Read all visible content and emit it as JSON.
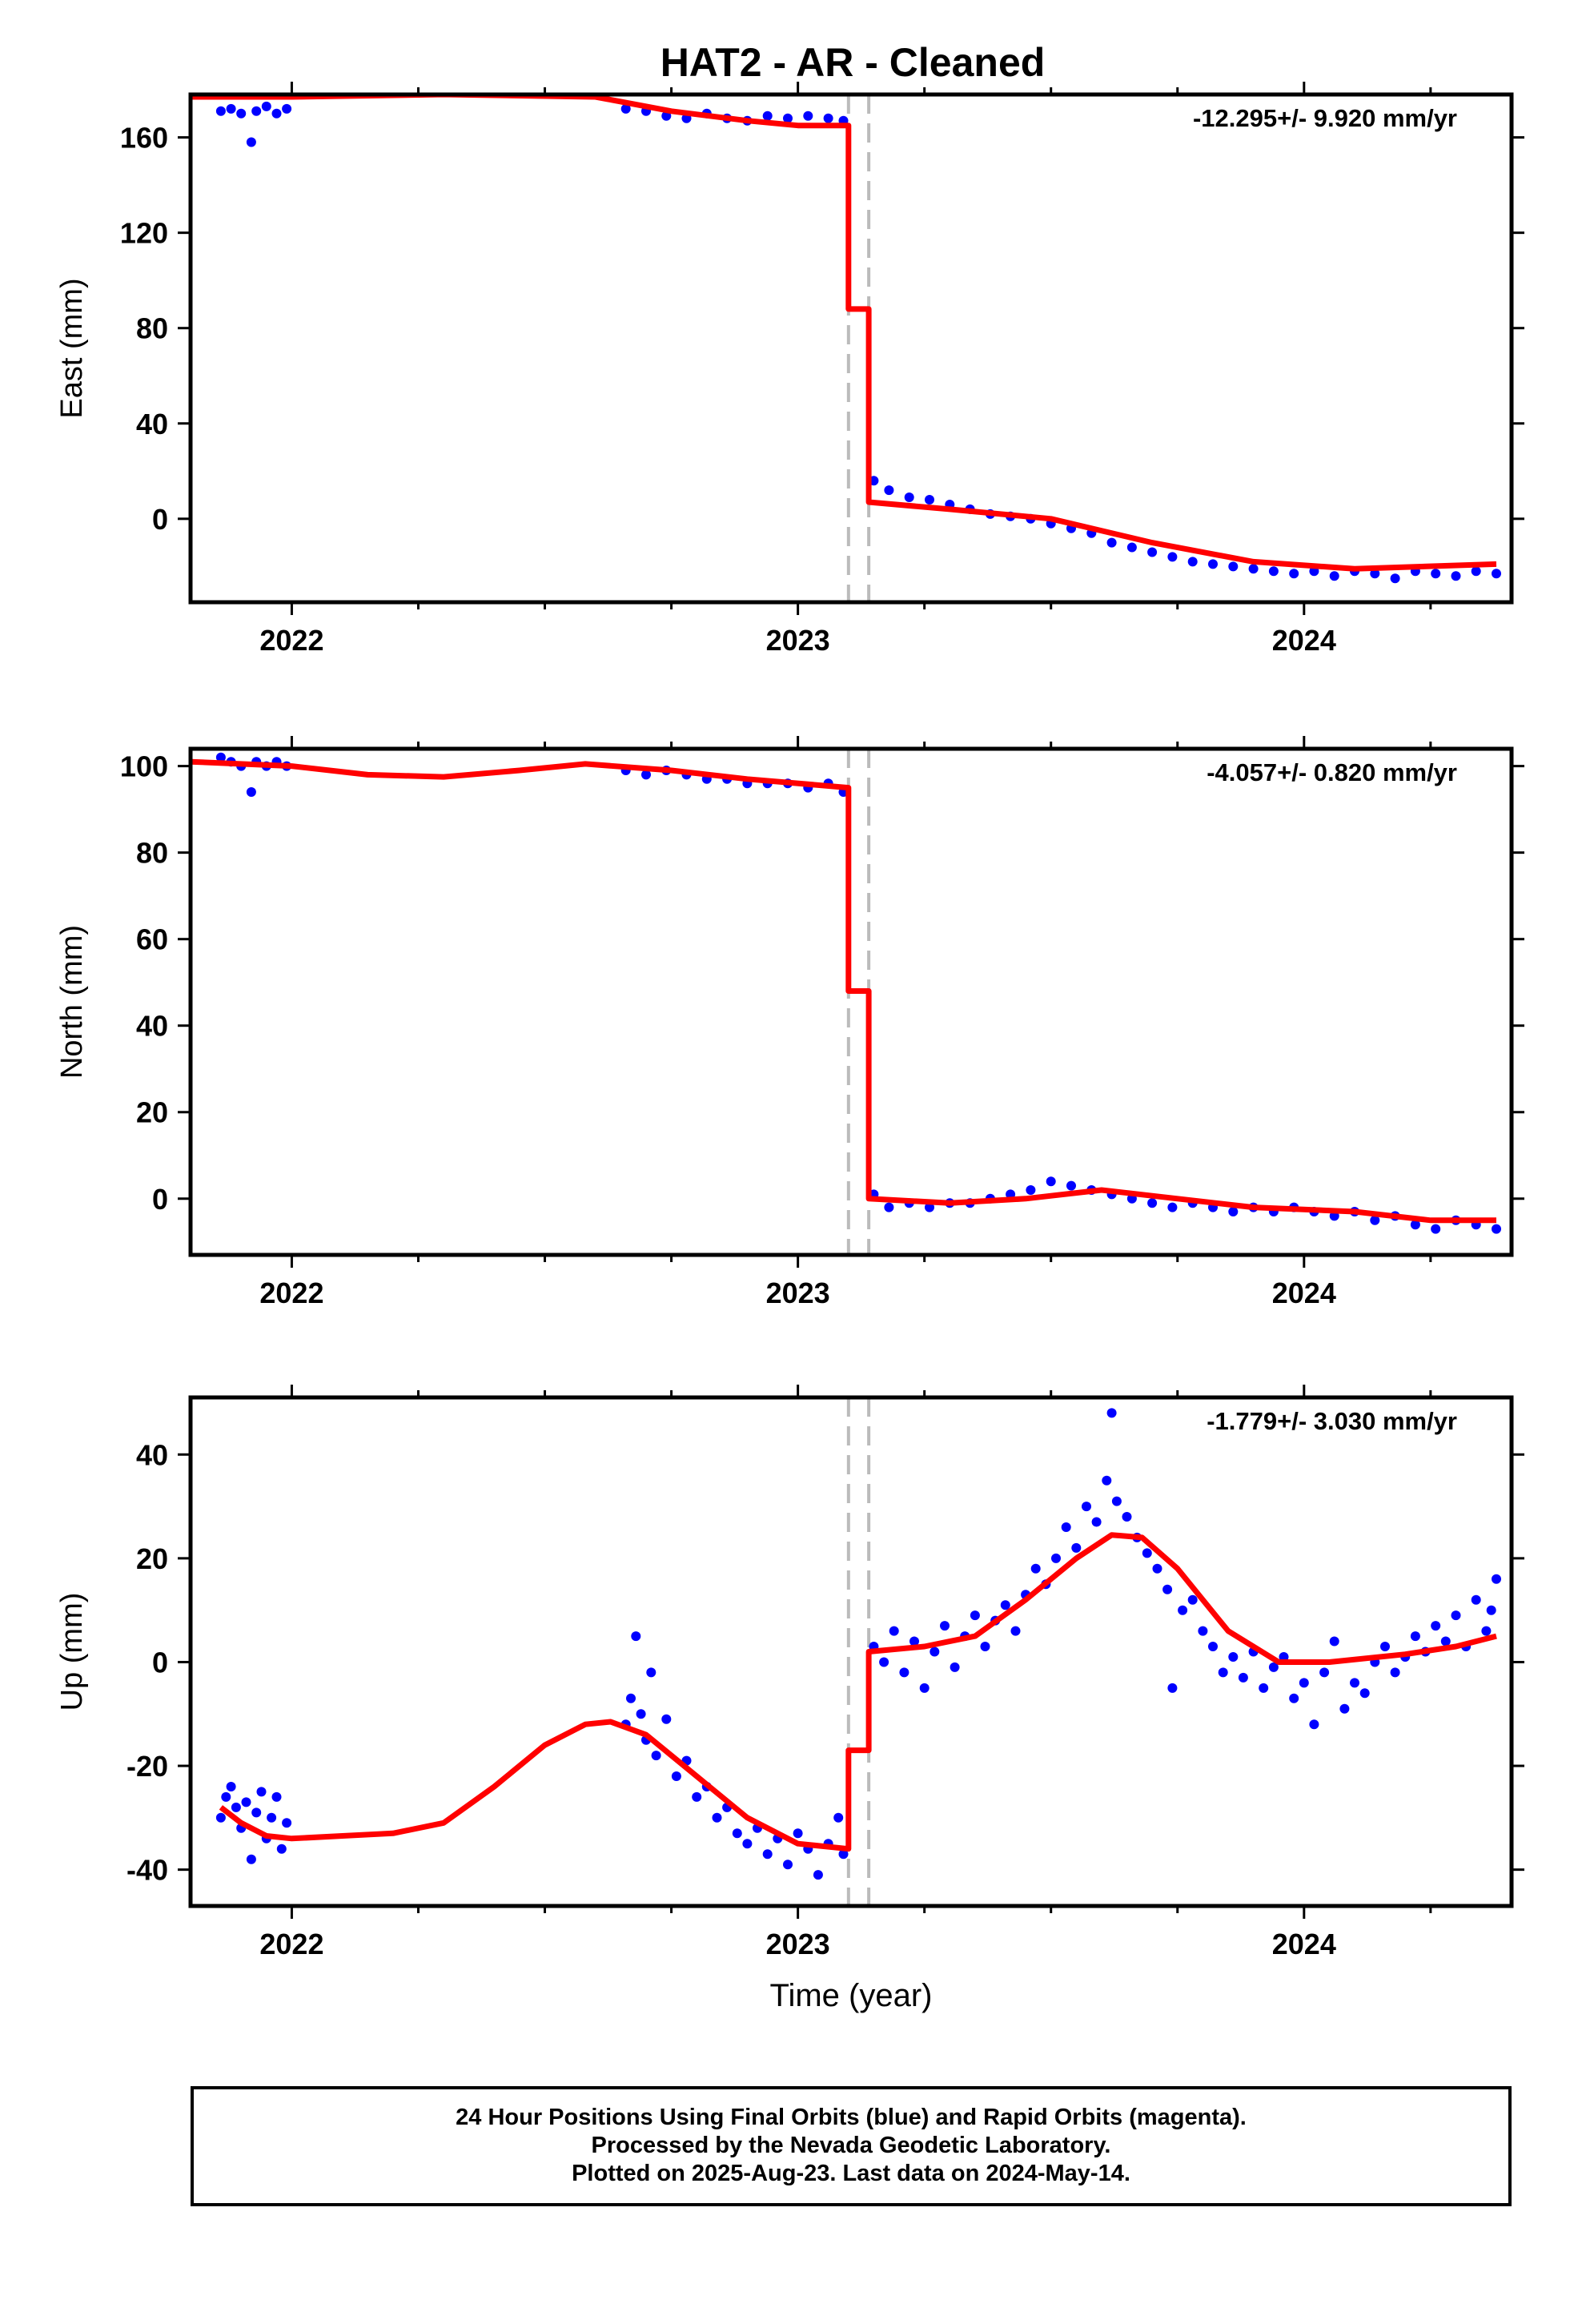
{
  "title": "HAT2  - AR - Cleaned",
  "footer": {
    "line1": "24 Hour Positions Using Final Orbits (blue) and Rapid Orbits (magenta).",
    "line2": "Processed by the Nevada Geodetic Laboratory.",
    "line3": "Plotted on 2025-Aug-23. Last data on 2024-May-14."
  },
  "chart_data": [
    {
      "type": "scatter",
      "ylabel": "East (mm)",
      "xlabel": "",
      "rate": "-12.295+/- 9.920 mm/yr",
      "xlim": [
        2021.8,
        2024.41
      ],
      "ylim": [
        -35,
        178
      ],
      "xticks": [
        "2022",
        "2023",
        "2024"
      ],
      "yticks": [
        0,
        40,
        80,
        120,
        160
      ],
      "colors": {
        "points": "#0000ff",
        "model": "#ff0000",
        "events": "#bbbbbb"
      },
      "events": [
        2023.1,
        2023.14
      ],
      "points": [
        [
          2021.86,
          171
        ],
        [
          2021.88,
          172
        ],
        [
          2021.9,
          170
        ],
        [
          2021.92,
          158
        ],
        [
          2021.93,
          171
        ],
        [
          2021.95,
          173
        ],
        [
          2021.97,
          170
        ],
        [
          2021.99,
          172
        ],
        [
          2022.66,
          172
        ],
        [
          2022.7,
          171
        ],
        [
          2022.74,
          169
        ],
        [
          2022.78,
          168
        ],
        [
          2022.82,
          170
        ],
        [
          2022.86,
          168
        ],
        [
          2022.9,
          167
        ],
        [
          2022.94,
          169
        ],
        [
          2022.98,
          168
        ],
        [
          2023.02,
          169
        ],
        [
          2023.06,
          168
        ],
        [
          2023.09,
          167
        ],
        [
          2023.15,
          16
        ],
        [
          2023.18,
          12
        ],
        [
          2023.22,
          9
        ],
        [
          2023.26,
          8
        ],
        [
          2023.3,
          6
        ],
        [
          2023.34,
          4
        ],
        [
          2023.38,
          2
        ],
        [
          2023.42,
          1
        ],
        [
          2023.46,
          0
        ],
        [
          2023.5,
          -2
        ],
        [
          2023.54,
          -4
        ],
        [
          2023.58,
          -6
        ],
        [
          2023.62,
          -10
        ],
        [
          2023.66,
          -12
        ],
        [
          2023.7,
          -14
        ],
        [
          2023.74,
          -16
        ],
        [
          2023.78,
          -18
        ],
        [
          2023.82,
          -19
        ],
        [
          2023.86,
          -20
        ],
        [
          2023.9,
          -21
        ],
        [
          2023.94,
          -22
        ],
        [
          2023.98,
          -23
        ],
        [
          2024.02,
          -22
        ],
        [
          2024.06,
          -24
        ],
        [
          2024.1,
          -22
        ],
        [
          2024.14,
          -23
        ],
        [
          2024.18,
          -25
        ],
        [
          2024.22,
          -22
        ],
        [
          2024.26,
          -23
        ],
        [
          2024.3,
          -24
        ],
        [
          2024.34,
          -22
        ],
        [
          2024.38,
          -23
        ]
      ],
      "model": [
        [
          2021.8,
          177
        ],
        [
          2022.0,
          177
        ],
        [
          2022.3,
          178
        ],
        [
          2022.6,
          177
        ],
        [
          2022.75,
          171
        ],
        [
          2022.9,
          167
        ],
        [
          2023.0,
          165
        ],
        [
          2023.1,
          165
        ],
        [
          2023.1,
          88
        ],
        [
          2023.14,
          88
        ],
        [
          2023.14,
          7
        ],
        [
          2023.3,
          4
        ],
        [
          2023.5,
          0
        ],
        [
          2023.7,
          -10
        ],
        [
          2023.9,
          -18
        ],
        [
          2024.1,
          -21
        ],
        [
          2024.38,
          -19
        ]
      ]
    },
    {
      "type": "scatter",
      "ylabel": "North (mm)",
      "xlabel": "",
      "rate": "-4.057+/- 0.820 mm/yr",
      "xlim": [
        2021.8,
        2024.41
      ],
      "ylim": [
        -13,
        104
      ],
      "xticks": [
        "2022",
        "2023",
        "2024"
      ],
      "yticks": [
        0,
        20,
        40,
        60,
        80,
        100
      ],
      "colors": {
        "points": "#0000ff",
        "model": "#ff0000",
        "events": "#bbbbbb"
      },
      "events": [
        2023.1,
        2023.14
      ],
      "points": [
        [
          2021.86,
          102
        ],
        [
          2021.88,
          101
        ],
        [
          2021.9,
          100
        ],
        [
          2021.92,
          94
        ],
        [
          2021.93,
          101
        ],
        [
          2021.95,
          100
        ],
        [
          2021.97,
          101
        ],
        [
          2021.99,
          100
        ],
        [
          2022.66,
          99
        ],
        [
          2022.7,
          98
        ],
        [
          2022.74,
          99
        ],
        [
          2022.78,
          98
        ],
        [
          2022.82,
          97
        ],
        [
          2022.86,
          97
        ],
        [
          2022.9,
          96
        ],
        [
          2022.94,
          96
        ],
        [
          2022.98,
          96
        ],
        [
          2023.02,
          95
        ],
        [
          2023.06,
          96
        ],
        [
          2023.09,
          94
        ],
        [
          2023.15,
          1
        ],
        [
          2023.18,
          -2
        ],
        [
          2023.22,
          -1
        ],
        [
          2023.26,
          -2
        ],
        [
          2023.3,
          -1
        ],
        [
          2023.34,
          -1
        ],
        [
          2023.38,
          0
        ],
        [
          2023.42,
          1
        ],
        [
          2023.46,
          2
        ],
        [
          2023.5,
          4
        ],
        [
          2023.54,
          3
        ],
        [
          2023.58,
          2
        ],
        [
          2023.62,
          1
        ],
        [
          2023.66,
          0
        ],
        [
          2023.7,
          -1
        ],
        [
          2023.74,
          -2
        ],
        [
          2023.78,
          -1
        ],
        [
          2023.82,
          -2
        ],
        [
          2023.86,
          -3
        ],
        [
          2023.9,
          -2
        ],
        [
          2023.94,
          -3
        ],
        [
          2023.98,
          -2
        ],
        [
          2024.02,
          -3
        ],
        [
          2024.06,
          -4
        ],
        [
          2024.1,
          -3
        ],
        [
          2024.14,
          -5
        ],
        [
          2024.18,
          -4
        ],
        [
          2024.22,
          -6
        ],
        [
          2024.26,
          -7
        ],
        [
          2024.3,
          -5
        ],
        [
          2024.34,
          -6
        ],
        [
          2024.38,
          -7
        ]
      ],
      "model": [
        [
          2021.8,
          101
        ],
        [
          2022.0,
          100
        ],
        [
          2022.15,
          98
        ],
        [
          2022.3,
          97.5
        ],
        [
          2022.45,
          99
        ],
        [
          2022.58,
          100.5
        ],
        [
          2022.75,
          99
        ],
        [
          2022.9,
          97
        ],
        [
          2023.1,
          95
        ],
        [
          2023.1,
          48
        ],
        [
          2023.14,
          48
        ],
        [
          2023.14,
          0
        ],
        [
          2023.3,
          -1
        ],
        [
          2023.45,
          0
        ],
        [
          2023.6,
          2
        ],
        [
          2023.75,
          0
        ],
        [
          2023.9,
          -2
        ],
        [
          2024.1,
          -3
        ],
        [
          2024.25,
          -5
        ],
        [
          2024.38,
          -5
        ]
      ]
    },
    {
      "type": "scatter",
      "ylabel": "Up (mm)",
      "xlabel": "Time (year)",
      "rate": "-1.779+/- 3.030 mm/yr",
      "xlim": [
        2021.8,
        2024.41
      ],
      "ylim": [
        -47,
        51
      ],
      "xticks": [
        "2022",
        "2023",
        "2024"
      ],
      "yticks": [
        -40,
        -20,
        0,
        20,
        40
      ],
      "colors": {
        "points": "#0000ff",
        "model": "#ff0000",
        "events": "#bbbbbb"
      },
      "events": [
        2023.1,
        2023.14
      ],
      "points": [
        [
          2021.86,
          -30
        ],
        [
          2021.87,
          -26
        ],
        [
          2021.88,
          -24
        ],
        [
          2021.89,
          -28
        ],
        [
          2021.9,
          -32
        ],
        [
          2021.91,
          -27
        ],
        [
          2021.92,
          -38
        ],
        [
          2021.93,
          -29
        ],
        [
          2021.94,
          -25
        ],
        [
          2021.95,
          -34
        ],
        [
          2021.96,
          -30
        ],
        [
          2021.97,
          -26
        ],
        [
          2021.98,
          -36
        ],
        [
          2021.99,
          -31
        ],
        [
          2022.66,
          -12
        ],
        [
          2022.67,
          -7
        ],
        [
          2022.68,
          5
        ],
        [
          2022.69,
          -10
        ],
        [
          2022.7,
          -15
        ],
        [
          2022.71,
          -2
        ],
        [
          2022.72,
          -18
        ],
        [
          2022.74,
          -11
        ],
        [
          2022.76,
          -22
        ],
        [
          2022.78,
          -19
        ],
        [
          2022.8,
          -26
        ],
        [
          2022.82,
          -24
        ],
        [
          2022.84,
          -30
        ],
        [
          2022.86,
          -28
        ],
        [
          2022.88,
          -33
        ],
        [
          2022.9,
          -35
        ],
        [
          2022.92,
          -32
        ],
        [
          2022.94,
          -37
        ],
        [
          2022.96,
          -34
        ],
        [
          2022.98,
          -39
        ],
        [
          2023.0,
          -33
        ],
        [
          2023.02,
          -36
        ],
        [
          2023.04,
          -41
        ],
        [
          2023.06,
          -35
        ],
        [
          2023.08,
          -30
        ],
        [
          2023.09,
          -37
        ],
        [
          2023.15,
          3
        ],
        [
          2023.17,
          0
        ],
        [
          2023.19,
          6
        ],
        [
          2023.21,
          -2
        ],
        [
          2023.23,
          4
        ],
        [
          2023.25,
          -5
        ],
        [
          2023.27,
          2
        ],
        [
          2023.29,
          7
        ],
        [
          2023.31,
          -1
        ],
        [
          2023.33,
          5
        ],
        [
          2023.35,
          9
        ],
        [
          2023.37,
          3
        ],
        [
          2023.39,
          8
        ],
        [
          2023.41,
          11
        ],
        [
          2023.43,
          6
        ],
        [
          2023.45,
          13
        ],
        [
          2023.47,
          18
        ],
        [
          2023.49,
          15
        ],
        [
          2023.51,
          20
        ],
        [
          2023.53,
          26
        ],
        [
          2023.55,
          22
        ],
        [
          2023.57,
          30
        ],
        [
          2023.59,
          27
        ],
        [
          2023.61,
          35
        ],
        [
          2023.62,
          48
        ],
        [
          2023.63,
          31
        ],
        [
          2023.65,
          28
        ],
        [
          2023.67,
          24
        ],
        [
          2023.69,
          21
        ],
        [
          2023.71,
          18
        ],
        [
          2023.73,
          14
        ],
        [
          2023.74,
          -5
        ],
        [
          2023.76,
          10
        ],
        [
          2023.78,
          12
        ],
        [
          2023.8,
          6
        ],
        [
          2023.82,
          3
        ],
        [
          2023.84,
          -2
        ],
        [
          2023.86,
          1
        ],
        [
          2023.88,
          -3
        ],
        [
          2023.9,
          2
        ],
        [
          2023.92,
          -5
        ],
        [
          2023.94,
          -1
        ],
        [
          2023.96,
          1
        ],
        [
          2023.98,
          -7
        ],
        [
          2024.0,
          -4
        ],
        [
          2024.02,
          -12
        ],
        [
          2024.04,
          -2
        ],
        [
          2024.06,
          4
        ],
        [
          2024.08,
          -9
        ],
        [
          2024.1,
          -4
        ],
        [
          2024.12,
          -6
        ],
        [
          2024.14,
          0
        ],
        [
          2024.16,
          3
        ],
        [
          2024.18,
          -2
        ],
        [
          2024.2,
          1
        ],
        [
          2024.22,
          5
        ],
        [
          2024.24,
          2
        ],
        [
          2024.26,
          7
        ],
        [
          2024.28,
          4
        ],
        [
          2024.3,
          9
        ],
        [
          2024.32,
          3
        ],
        [
          2024.34,
          12
        ],
        [
          2024.36,
          6
        ],
        [
          2024.37,
          10
        ],
        [
          2024.38,
          16
        ]
      ],
      "model": [
        [
          2021.86,
          -28
        ],
        [
          2021.9,
          -31
        ],
        [
          2021.95,
          -33.5
        ],
        [
          2022.0,
          -34
        ],
        [
          2022.1,
          -33.5
        ],
        [
          2022.2,
          -33
        ],
        [
          2022.3,
          -31
        ],
        [
          2022.4,
          -24
        ],
        [
          2022.5,
          -16
        ],
        [
          2022.58,
          -12
        ],
        [
          2022.63,
          -11.5
        ],
        [
          2022.7,
          -14
        ],
        [
          2022.8,
          -22
        ],
        [
          2022.9,
          -30
        ],
        [
          2023.0,
          -35
        ],
        [
          2023.1,
          -36
        ],
        [
          2023.1,
          -17
        ],
        [
          2023.14,
          -17
        ],
        [
          2023.14,
          2
        ],
        [
          2023.25,
          3
        ],
        [
          2023.35,
          5
        ],
        [
          2023.45,
          12
        ],
        [
          2023.55,
          20
        ],
        [
          2023.62,
          24.5
        ],
        [
          2023.68,
          24
        ],
        [
          2023.75,
          18
        ],
        [
          2023.85,
          6
        ],
        [
          2023.95,
          0
        ],
        [
          2024.05,
          0
        ],
        [
          2024.2,
          1.5
        ],
        [
          2024.3,
          3
        ],
        [
          2024.38,
          5
        ]
      ]
    }
  ]
}
